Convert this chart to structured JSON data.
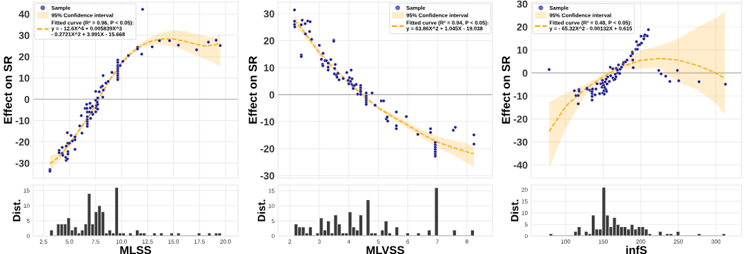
{
  "chart_data": [
    {
      "type": "scatter",
      "ylabel": "Effect on SR",
      "xlim": [
        1.5,
        21.2
      ],
      "ylim": [
        -37,
        45.6
      ],
      "xticks": [
        2.5,
        5.0,
        7.5,
        10.0,
        12.5,
        15.0,
        17.5,
        20.0
      ],
      "yticks": [
        -30,
        -20,
        -10,
        0,
        10,
        20,
        30,
        40
      ],
      "tick_labels": "y",
      "grid": true,
      "legend": "top left",
      "ref_lines": [
        {
          "axis": "y",
          "value": 0,
          "color": "#bdbdbd"
        }
      ],
      "series": [
        {
          "name": "Sample",
          "type": "scatter",
          "color": "#1c1c8f",
          "marker": "circle",
          "x": [
            3.12,
            3.12,
            4.0,
            4.0,
            4.3,
            4.3,
            4.36,
            4.64,
            4.68,
            4.8,
            4.68,
            4.79,
            4.83,
            4.85,
            4.85,
            5.0,
            5.15,
            5.28,
            5.53,
            5.53,
            5.53,
            5.98,
            6.13,
            6.2,
            6.5,
            6.65,
            6.67,
            6.71,
            6.71,
            6.71,
            6.71,
            6.71,
            6.71,
            6.92,
            6.97,
            7.0,
            7.03,
            7.14,
            7.2,
            7.24,
            7.52,
            7.52,
            7.52,
            7.56,
            7.6,
            7.67,
            7.71,
            7.71,
            7.71,
            7.86,
            8.03,
            8.16,
            8.2,
            8.23,
            8.25,
            8.5,
            8.72,
            9.08,
            9.64,
            9.64,
            9.64,
            9.64,
            9.64,
            9.64,
            9.64,
            9.64,
            9.64,
            9.64,
            9.87,
            10.13,
            10.66,
            11.54,
            11.54,
            11.94,
            12.03,
            12.95,
            13.65,
            14.62,
            15.47,
            17.22,
            18.36,
            19.1,
            19.49
          ],
          "values": [
            -33.0,
            -33.8,
            -24.0,
            -25.1,
            -25.4,
            -22.6,
            -26.3,
            -27.3,
            -28.7,
            -28.0,
            -22.0,
            -15.7,
            -20.6,
            -24.6,
            -25.7,
            -20.6,
            -17.0,
            -19.6,
            -17.7,
            -19.0,
            -23.5,
            -12.5,
            -7.7,
            -15.9,
            -4.3,
            -2.4,
            -4.3,
            -6.0,
            -8.2,
            -9.5,
            -10.5,
            -11.6,
            -12.7,
            -6.0,
            -1.9,
            -4.1,
            -9.0,
            -6.2,
            -3.3,
            -7.1,
            3.7,
            -0.5,
            -5.9,
            -4.1,
            -3.0,
            -1.4,
            0.6,
            -2.4,
            -4.6,
            3.5,
            5.7,
            6.2,
            1.0,
            11.1,
            4.3,
            7.6,
            8.4,
            12.6,
            18.4,
            17.3,
            15.9,
            15.0,
            14.1,
            13.1,
            12.0,
            11.0,
            10.0,
            9.2,
            15.8,
            17.8,
            20.5,
            24.4,
            23.6,
            21.2,
            42.2,
            24.6,
            27.5,
            27.5,
            25.4,
            23.2,
            26.8,
            27.7,
            25.2
          ]
        },
        {
          "name": "Fitted curve (R² = 0.96, P < 0.05):\ny = - 12.6X^4 + 0.005839X^3\n- 0.2721X^2 + 3.991X - 15.668",
          "type": "line",
          "color": "#ffa500",
          "line_style": "dashed",
          "x": [
            3.12,
            4,
            5,
            6,
            7,
            8,
            9,
            10,
            11,
            12,
            13,
            14,
            15,
            16,
            17,
            18,
            19,
            19.5
          ],
          "values": [
            -30.2,
            -27,
            -21,
            -14,
            -7,
            2,
            10,
            17,
            22,
            25.5,
            27.5,
            28.3,
            28.3,
            27.3,
            26,
            25,
            25.5,
            26.5
          ],
          "lower": [
            -33.8,
            -29,
            -22.5,
            -15.2,
            -8,
            1,
            9,
            16,
            20.8,
            24.2,
            25.6,
            25.5,
            24.5,
            23,
            21,
            19,
            16.8,
            15.4
          ],
          "upper": [
            -26.5,
            -25,
            -19.5,
            -12.8,
            -6,
            3,
            11,
            18,
            23.2,
            26.8,
            29.5,
            31.5,
            32.5,
            32,
            31,
            29.5,
            29,
            30.5
          ]
        }
      ],
      "annotations": [
        "95% Confidence interval"
      ]
    },
    {
      "type": "histogram",
      "xlabel": "MLSS",
      "ylabel": "Dist.",
      "color": "#3a3a3a",
      "xlim": [
        1.5,
        21.2
      ],
      "ylim": [
        0,
        16.8
      ],
      "xticks": [
        2.5,
        {
          "value": 5,
          "label": "5.0"
        },
        7.5,
        {
          "value": 10,
          "label": "10.0"
        },
        12.5,
        {
          "value": 15,
          "label": "15.0"
        },
        17.5,
        {
          "value": 20,
          "label": "20.0"
        }
      ],
      "yticks": [
        0,
        5,
        10,
        15
      ],
      "grid": true,
      "bins": [
        3.1,
        3.43,
        3.76,
        4.09,
        4.42,
        4.75,
        5.08,
        5.41,
        5.74,
        6.07,
        6.4,
        6.73,
        7.06,
        7.39,
        7.72,
        8.05,
        8.38,
        8.71,
        9.04,
        9.37,
        9.7,
        10.03,
        10.36,
        10.69,
        11.02,
        11.35,
        11.68,
        12.01,
        12.34,
        12.67,
        13.0,
        13.33,
        13.66,
        13.99,
        14.32,
        14.65,
        14.98,
        15.31,
        15.64,
        15.97,
        16.3,
        16.63,
        16.96,
        17.29,
        17.62,
        17.95,
        18.28,
        18.61,
        18.94,
        19.27,
        19.6
      ],
      "values": [
        2,
        0,
        4,
        4,
        4,
        6,
        2,
        3,
        1,
        2,
        4,
        14,
        4,
        8,
        10,
        8,
        1,
        2,
        1,
        16,
        1,
        1,
        0,
        1,
        0,
        2,
        1,
        1,
        0,
        0,
        1,
        0,
        1,
        0,
        0,
        1,
        0,
        1,
        0,
        0,
        0,
        0,
        0,
        1,
        0,
        0,
        1,
        0,
        1,
        1
      ]
    },
    {
      "type": "scatter",
      "ylabel": "Effect on SR",
      "xlim": [
        1.6,
        8.87
      ],
      "ylim": [
        -30.9,
        34.3
      ],
      "xticks": [
        2,
        3,
        4,
        5,
        6,
        7,
        8
      ],
      "yticks": [
        -30,
        -20,
        -10,
        0,
        10,
        20,
        30
      ],
      "tick_labels": "y",
      "grid": true,
      "legend": "top right",
      "ref_lines": [
        {
          "axis": "y",
          "value": 0,
          "color": "#bdbdbd"
        }
      ],
      "series": [
        {
          "name": "Sample",
          "type": "scatter",
          "color": "#1c1c8f",
          "marker": "circle",
          "x": [
            2.16,
            2.16,
            2.16,
            2.17,
            2.39,
            2.42,
            2.39,
            2.39,
            2.52,
            2.53,
            2.61,
            2.69,
            2.67,
            2.74,
            3.0,
            3.07,
            3.11,
            3.12,
            3.13,
            3.19,
            3.24,
            3.3,
            3.3,
            3.3,
            3.39,
            3.49,
            3.49,
            3.51,
            3.52,
            3.54,
            3.58,
            3.6,
            3.63,
            3.67,
            3.81,
            3.93,
            3.98,
            4.0,
            4.02,
            4.06,
            4.08,
            4.1,
            4.11,
            4.14,
            4.15,
            4.19,
            4.25,
            4.3,
            4.4,
            4.4,
            4.4,
            4.4,
            4.4,
            4.59,
            4.59,
            4.59,
            4.59,
            4.59,
            4.59,
            4.79,
            4.89,
            5.1,
            5.18,
            5.27,
            5.3,
            5.32,
            5.61,
            5.61,
            5.61,
            5.95,
            6.34,
            6.77,
            6.77,
            6.93,
            6.93,
            6.93,
            6.93,
            6.93,
            6.93,
            6.93,
            7.54,
            7.61,
            8.24,
            8.24
          ],
          "values": [
            31.4,
            27.2,
            26.0,
            25.1,
            25.9,
            27.6,
            14.7,
            14.1,
            26.3,
            22.5,
            27.3,
            27.0,
            23.4,
            20.5,
            18.3,
            13.1,
            11.3,
            10.7,
            15.3,
            12.6,
            12.6,
            11.7,
            10.2,
            9.1,
            13.0,
            20.2,
            19.8,
            7.7,
            9.7,
            11.2,
            7.2,
            6.5,
            7.9,
            5.5,
            6.0,
            8.2,
            5.3,
            4.0,
            6.3,
            4.9,
            9.1,
            3.8,
            5.9,
            3.4,
            2.3,
            3.4,
            3.8,
            0.2,
            3.4,
            2.5,
            1.7,
            1.1,
            0.1,
            0.6,
            -0.5,
            -1.3,
            -2.1,
            -2.9,
            -3.6,
            0.6,
            -3.9,
            -2.3,
            -2.3,
            -9.0,
            -8.3,
            -9.8,
            -6.4,
            -11.5,
            -12.6,
            -8.1,
            -14.7,
            -12.6,
            -14.0,
            -17.7,
            -18.6,
            -19.5,
            -20.3,
            -21.2,
            -22.0,
            -22.8,
            -13.2,
            -12.1,
            -14.9,
            -18.3
          ]
        },
        {
          "name": "Fitted curve (R² = 0.94, P < 0.05):\ny = 63.86X^2 + 1.045X - 19.038",
          "type": "line",
          "color": "#ffa500",
          "line_style": "dashed",
          "x": [
            2.16,
            2.5,
            3,
            3.5,
            4,
            4.5,
            5,
            5.5,
            6,
            6.5,
            7,
            7.5,
            8,
            8.24
          ],
          "values": [
            27.6,
            23,
            15.5,
            9.7,
            4.5,
            -0.5,
            -4.9,
            -8.3,
            -11.3,
            -14.7,
            -17.5,
            -19.5,
            -21.2,
            -21.9
          ],
          "lower": [
            25.6,
            21.6,
            14.5,
            8.9,
            3.8,
            -1.2,
            -5.6,
            -9.2,
            -12.5,
            -16.2,
            -19.5,
            -22.3,
            -25.3,
            -26.9
          ],
          "upper": [
            29.6,
            24.4,
            16.5,
            10.5,
            5.2,
            0.2,
            -4.2,
            -7.4,
            -10.1,
            -13.2,
            -15.5,
            -16.8,
            -18,
            -19.4
          ]
        }
      ],
      "annotations": [
        "95% Confidence interval"
      ]
    },
    {
      "type": "histogram",
      "xlabel": "MLVSS",
      "ylabel": "Dist.",
      "color": "#3a3a3a",
      "xlim": [
        1.6,
        8.87
      ],
      "ylim": [
        0,
        16.9
      ],
      "xticks": [
        2,
        3,
        4,
        5,
        6,
        7,
        8
      ],
      "yticks": [
        0,
        5,
        10,
        15
      ],
      "grid": true,
      "bins": [
        2.15,
        2.272,
        2.394,
        2.516,
        2.638,
        2.76,
        2.882,
        3.004,
        3.126,
        3.248,
        3.37,
        3.492,
        3.614,
        3.736,
        3.858,
        3.98,
        4.102,
        4.224,
        4.346,
        4.468,
        4.59,
        4.712,
        4.834,
        4.956,
        5.078,
        5.2,
        5.322,
        5.444,
        5.566,
        5.688,
        5.81,
        5.932,
        6.054,
        6.176,
        6.298,
        6.42,
        6.542,
        6.664,
        6.786,
        6.908,
        7.03,
        7.152,
        7.274,
        7.396,
        7.518,
        7.64,
        7.762,
        7.884,
        8.006,
        8.128,
        8.25
      ],
      "values": [
        4,
        3,
        3,
        1,
        3,
        0,
        1,
        6,
        2,
        5,
        1,
        7,
        4,
        1,
        1,
        8,
        3,
        2,
        7,
        0,
        12,
        1,
        1,
        0,
        2,
        5,
        1,
        0,
        3,
        0,
        0,
        1,
        0,
        0,
        1,
        0,
        0,
        2,
        0,
        16,
        0,
        0,
        0,
        0,
        2,
        0,
        0,
        0,
        0,
        2
      ]
    },
    {
      "type": "scatter",
      "ylabel": "Effect on SR",
      "xlim": [
        54.1,
        334.2
      ],
      "ylim": [
        -45.7,
        30.8
      ],
      "xticks": [
        100,
        150,
        200,
        250,
        300
      ],
      "yticks": [
        -40,
        -30,
        -20,
        -10,
        0,
        10,
        20,
        30
      ],
      "tick_labels": "y",
      "grid": true,
      "legend": "top left",
      "ref_lines": [
        {
          "axis": "y",
          "value": 0,
          "color": "#bdbdbd"
        }
      ],
      "series": [
        {
          "name": "Sample",
          "type": "scatter",
          "color": "#1c1c8f",
          "marker": "circle",
          "x": [
            78,
            111.6,
            113.8,
            116.8,
            116.8,
            117.8,
            117.8,
            128.5,
            128.5,
            132.1,
            134.3,
            135.2,
            135.2,
            135.2,
            135.2,
            135.8,
            139.2,
            140.4,
            141.9,
            145.3,
            146.8,
            148.4,
            149,
            149.6,
            149.6,
            150.5,
            151.1,
            151.4,
            152.1,
            152.7,
            153.6,
            153.9,
            154.5,
            155.1,
            156,
            158.2,
            159.4,
            160,
            162.8,
            162.8,
            164.3,
            165.8,
            166.1,
            167,
            167.4,
            168.9,
            169.5,
            170.4,
            172,
            172.6,
            174.4,
            176.5,
            177.2,
            179.6,
            181.8,
            186.7,
            188.8,
            189.1,
            189.4,
            190,
            193.4,
            194.3,
            195.5,
            196.4,
            198.6,
            200.4,
            201,
            204.1,
            204.7,
            205.6,
            208.7,
            210.2,
            224,
            227.1,
            233.2,
            238.7,
            248.8,
            250.6,
            277.6,
            312.8
          ],
          "values": [
            1.5,
            -7.7,
            -9.8,
            -9.8,
            -13.4,
            -7.2,
            -7.9,
            -6.5,
            -7.0,
            -7.5,
            -8.0,
            -9.0,
            -10.2,
            -11.8,
            -8.0,
            -7.0,
            -9.5,
            -7.0,
            -4.7,
            -9.0,
            -4.7,
            -6.2,
            -3.2,
            -4.4,
            -8.7,
            -5.4,
            -7.7,
            -9.2,
            -6.4,
            -3.9,
            -7.2,
            -2.7,
            -8.0,
            -4.8,
            -1.7,
            -3.7,
            2.5,
            -1.2,
            -2.2,
            1.8,
            -3.0,
            -2.7,
            -0.6,
            -1.7,
            2.0,
            1.3,
            0,
            3.5,
            -0.2,
            1.6,
            2.5,
            3.8,
            4.6,
            4.8,
            5.6,
            7.4,
            9.1,
            8.4,
            5.6,
            2.3,
            10.3,
            13.6,
            10.3,
            12.1,
            12.3,
            16.0,
            13.0,
            14.8,
            16.0,
            16.6,
            16.1,
            18.8,
            1.1,
            -0.4,
            -1.4,
            -3.7,
            1.1,
            -3.4,
            -3.8,
            -4.9
          ]
        },
        {
          "name": "Fitted curve (R² = 0.48, P < 0.05):\ny = - 65.32X^2 - 0.00132X + 0.615",
          "type": "line",
          "color": "#ffa500",
          "line_style": "dashed",
          "x": [
            78,
            100,
            125,
            150,
            175,
            200,
            225,
            250,
            275,
            300,
            312
          ],
          "values": [
            -25.4,
            -14.5,
            -7.2,
            -1.7,
            2.8,
            5.5,
            6.3,
            5.6,
            3.3,
            0,
            -2.4
          ],
          "lower": [
            -41.5,
            -24.2,
            -10.2,
            -3,
            1.5,
            1.8,
            2.3,
            -4.2,
            -7.2,
            -13.2,
            -18.2
          ],
          "upper": [
            -12.5,
            -8.9,
            -5.2,
            -0.5,
            4.5,
            9.8,
            11.8,
            14.8,
            19.8,
            23.8,
            26.6
          ]
        }
      ],
      "annotations": [
        "95% Confidence interval"
      ]
    },
    {
      "type": "histogram",
      "xlabel": "infS",
      "ylabel": "Dist.",
      "color": "#3a3a3a",
      "xlim": [
        54.1,
        334.2
      ],
      "ylim": [
        0,
        22
      ],
      "xticks": [
        100,
        150,
        200,
        250,
        300
      ],
      "yticks": [
        0,
        5,
        10,
        15,
        20
      ],
      "grid": true,
      "bins": [
        78,
        82.7,
        87.4,
        92.1,
        96.8,
        101.5,
        106.2,
        110.9,
        115.6,
        120.3,
        125,
        129.7,
        134.4,
        139.1,
        143.8,
        148.5,
        153.2,
        157.9,
        162.6,
        167.3,
        172,
        176.7,
        181.4,
        186.1,
        190.8,
        195.5,
        200.2,
        204.9,
        209.6,
        214.3,
        219,
        223.7,
        228.4,
        233.1,
        237.8,
        242.5,
        247.2,
        251.9,
        256.6,
        261.3,
        266,
        270.7,
        275.4,
        280.1,
        284.8,
        289.5,
        294.2,
        298.9,
        303.6,
        308.3,
        313
      ],
      "values": [
        1,
        0,
        0,
        0,
        0,
        0,
        0,
        2,
        4,
        0,
        2,
        1,
        9,
        3,
        3,
        21,
        9,
        4,
        8,
        5,
        4,
        4,
        3,
        5,
        3,
        4,
        4,
        3,
        1,
        0,
        0,
        2,
        0,
        1,
        1,
        0,
        2,
        0,
        0,
        0,
        0,
        0,
        1,
        0,
        0,
        0,
        0,
        0,
        0,
        1
      ]
    }
  ]
}
